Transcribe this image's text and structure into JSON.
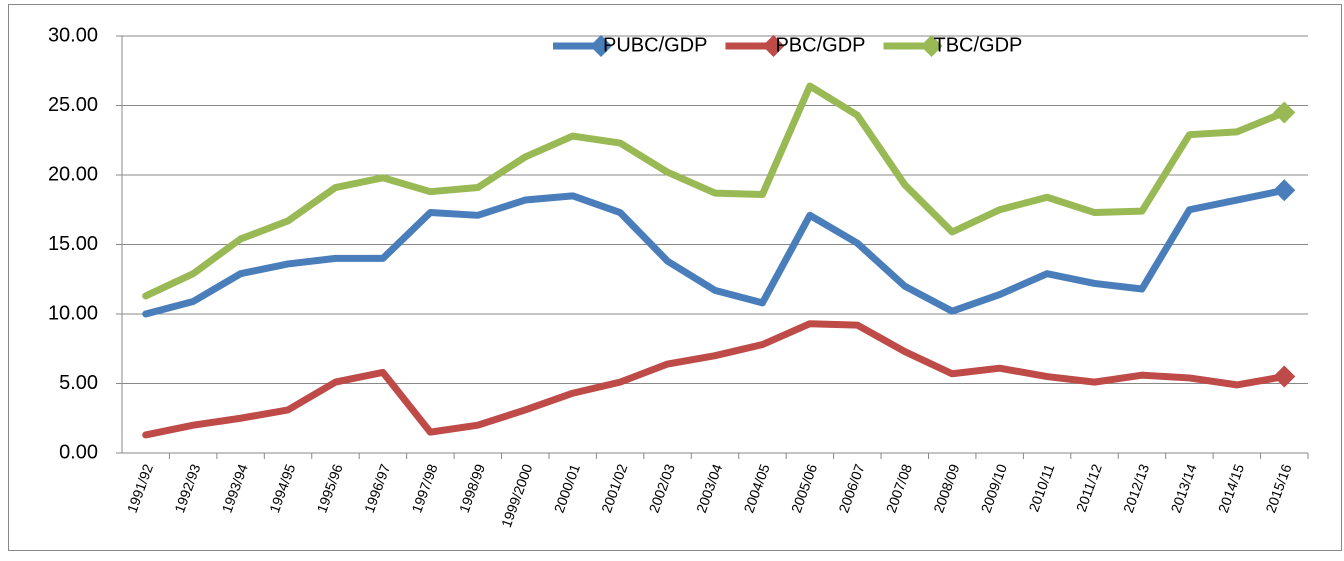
{
  "chart_data": {
    "type": "line",
    "categories": [
      "1991/92",
      "1992/93",
      "1993/94",
      "1994/95",
      "1995/96",
      "1996/97",
      "1997/98",
      "1998/99",
      "1999/2000",
      "2000/01",
      "2001/02",
      "2002/03",
      "2003/04",
      "2004/05",
      "2005/06",
      "2006/07",
      "2007/08",
      "2008/09",
      "2009/10",
      "2010/11",
      "2011/12",
      "2012/13",
      "2013/14",
      "2014/15",
      "2015/16"
    ],
    "series": [
      {
        "name": "PUBC/GDP",
        "color": "#4a7ebb",
        "values": [
          10.0,
          10.9,
          12.9,
          13.6,
          14.0,
          14.0,
          17.3,
          17.1,
          18.2,
          18.5,
          17.3,
          13.8,
          11.7,
          10.8,
          17.1,
          15.1,
          12.0,
          10.2,
          11.4,
          12.9,
          12.2,
          11.8,
          17.5,
          18.2,
          18.9
        ]
      },
      {
        "name": "PBC/GDP",
        "color": "#be4b48",
        "values": [
          1.3,
          2.0,
          2.5,
          3.1,
          5.1,
          5.8,
          1.5,
          2.0,
          3.1,
          4.3,
          5.1,
          6.4,
          7.0,
          7.8,
          9.3,
          9.2,
          7.3,
          5.7,
          6.1,
          5.5,
          5.1,
          5.6,
          5.4,
          4.9,
          5.5
        ]
      },
      {
        "name": "TBC/GDP",
        "color": "#98b954",
        "values": [
          11.3,
          12.9,
          15.4,
          16.7,
          19.1,
          19.8,
          18.8,
          19.1,
          21.3,
          22.8,
          22.3,
          20.2,
          18.7,
          18.6,
          26.4,
          24.3,
          19.3,
          15.9,
          17.5,
          18.4,
          17.3,
          17.4,
          22.9,
          23.1,
          24.5
        ]
      }
    ],
    "ylim": [
      0,
      30
    ],
    "yticks": [
      {
        "value": 0,
        "label": "0.00"
      },
      {
        "value": 5,
        "label": "5.00"
      },
      {
        "value": 10,
        "label": "10.00"
      },
      {
        "value": 15,
        "label": "15.00"
      },
      {
        "value": 20,
        "label": "20.00"
      },
      {
        "value": 25,
        "label": "25.00"
      },
      {
        "value": 30,
        "label": "30.00"
      }
    ],
    "grid": true,
    "legend": "top"
  }
}
